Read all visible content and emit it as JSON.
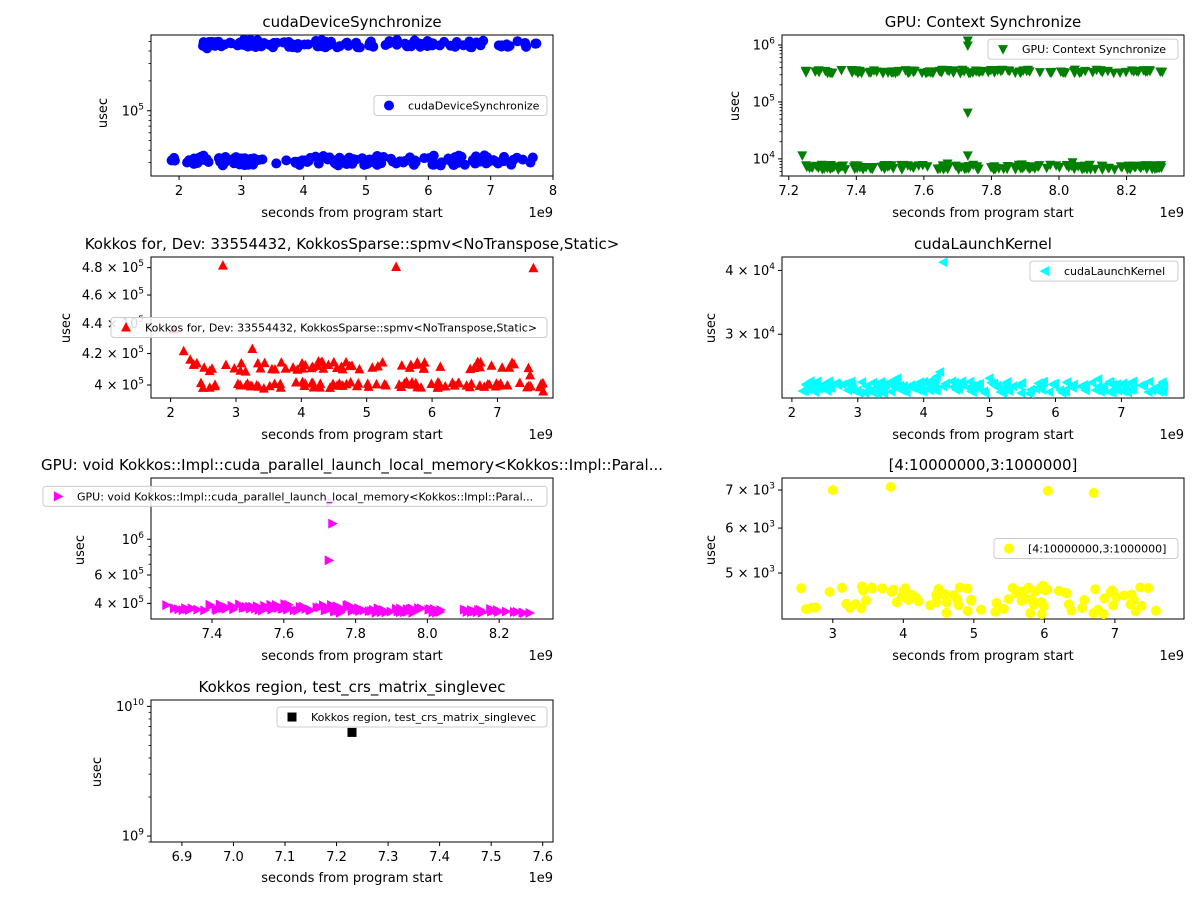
{
  "chart_data": [
    {
      "type": "scatter",
      "title": "cudaDeviceSynchronize",
      "xlabel": "seconds from program start",
      "ylabel": "usec",
      "x_offset_label": "1e9",
      "xlim": [
        1.55,
        8.0
      ],
      "ylim": [
        22000,
        580000
      ],
      "yscale": "log",
      "x_ticks": [
        2,
        3,
        4,
        5,
        6,
        7,
        8
      ],
      "x_tick_labels": [
        "2",
        "3",
        "4",
        "5",
        "6",
        "7",
        "8"
      ],
      "y_ticks": [
        100000
      ],
      "y_tick_labels": [
        "10^5"
      ],
      "legend_position": "center-right",
      "series": [
        {
          "name": "cudaDeviceSynchronize",
          "marker": "circle",
          "color": "#0000ff",
          "clusters": [
            {
              "x_start": 2.3,
              "x_end": 4.95,
              "y": 475000,
              "y_jitter": 0.04,
              "count": 60,
              "seed": 11
            },
            {
              "x_start": 5.05,
              "x_end": 6.9,
              "y": 475000,
              "y_jitter": 0.04,
              "count": 40,
              "seed": 12
            },
            {
              "x_start": 7.1,
              "x_end": 7.75,
              "y": 470000,
              "y_jitter": 0.04,
              "count": 12,
              "seed": 13
            },
            {
              "x_start": 1.85,
              "x_end": 7.75,
              "y": 31500,
              "y_jitter": 0.05,
              "count": 150,
              "seed": 14
            }
          ],
          "points": [
            {
              "x": 2.45,
              "y": 425000
            },
            {
              "x": 3.9,
              "y": 432000
            },
            {
              "x": 6.9,
              "y": 35500
            },
            {
              "x": 1.92,
              "y": 33500
            }
          ]
        }
      ]
    },
    {
      "type": "scatter",
      "title": "GPU: Context Synchronize",
      "xlabel": "seconds from program start",
      "ylabel": "usec",
      "x_offset_label": "1e9",
      "xlim": [
        7.18,
        8.37
      ],
      "ylim": [
        5000,
        1500000
      ],
      "yscale": "log",
      "x_ticks": [
        7.2,
        7.4,
        7.6,
        7.8,
        8.0,
        8.2
      ],
      "x_tick_labels": [
        "7.2",
        "7.4",
        "7.6",
        "7.8",
        "8.0",
        "8.2"
      ],
      "y_ticks": [
        10000,
        100000,
        1000000
      ],
      "y_tick_labels": [
        "10^4",
        "10^5",
        "10^6"
      ],
      "legend_position": "upper-right",
      "series": [
        {
          "name": "GPU: Context Synchronize",
          "marker": "triangle-down",
          "color": "#008000",
          "clusters": [
            {
              "x_start": 7.25,
              "x_end": 8.31,
              "y": 345000,
              "y_jitter": 0.03,
              "count": 120,
              "seed": 21
            },
            {
              "x_start": 7.25,
              "x_end": 8.31,
              "y": 7200,
              "y_jitter": 0.04,
              "count": 160,
              "seed": 22
            }
          ],
          "points": [
            {
              "x": 7.24,
              "y": 11500
            },
            {
              "x": 7.73,
              "y": 1200000
            },
            {
              "x": 7.73,
              "y": 980000
            },
            {
              "x": 7.73,
              "y": 65000
            },
            {
              "x": 7.73,
              "y": 11500
            },
            {
              "x": 7.67,
              "y": 8300
            },
            {
              "x": 7.89,
              "y": 8000
            },
            {
              "x": 8.04,
              "y": 8700
            }
          ]
        }
      ]
    },
    {
      "type": "scatter",
      "title": "Kokkos for, Dev: 33554432, KokkosSparse::spmv<NoTranspose,Static>",
      "xlabel": "seconds from program start",
      "ylabel": "usec",
      "x_offset_label": "1e9",
      "xlim": [
        1.7,
        7.85
      ],
      "ylim": [
        392000,
        488000
      ],
      "yscale": "log",
      "x_ticks": [
        2,
        3,
        4,
        5,
        6,
        7
      ],
      "x_tick_labels": [
        "2",
        "3",
        "4",
        "5",
        "6",
        "7"
      ],
      "y_ticks": [
        400000,
        420000,
        440000,
        460000,
        480000
      ],
      "y_tick_labels": [
        "4×10^5",
        "4.2×10^5",
        "4.4×10^5",
        "4.6×10^5",
        "4.8×10^5"
      ],
      "legend_position": "center-right",
      "series": [
        {
          "name": "Kokkos for, Dev: 33554432, KokkosSparse::spmv<NoTranspose,Static>",
          "marker": "triangle-up",
          "color": "#ff0000",
          "clusters": [
            {
              "x_start": 2.3,
              "x_end": 3.5,
              "y": 411000,
              "y_jitter": 0.003,
              "count": 14,
              "seed": 31
            },
            {
              "x_start": 2.3,
              "x_end": 3.5,
              "y": 399500,
              "y_jitter": 0.002,
              "count": 14,
              "seed": 32
            },
            {
              "x_start": 3.5,
              "x_end": 7.7,
              "y": 412000,
              "y_jitter": 0.003,
              "count": 50,
              "seed": 33
            },
            {
              "x_start": 3.5,
              "x_end": 7.7,
              "y": 400000,
              "y_jitter": 0.002,
              "count": 70,
              "seed": 34
            }
          ],
          "points": [
            {
              "x": 2.05,
              "y": 436000
            },
            {
              "x": 2.8,
              "y": 481500
            },
            {
              "x": 5.45,
              "y": 480500
            },
            {
              "x": 7.55,
              "y": 479500
            },
            {
              "x": 2.2,
              "y": 421500
            },
            {
              "x": 3.25,
              "y": 423000
            },
            {
              "x": 2.3,
              "y": 416000
            },
            {
              "x": 7.5,
              "y": 406000
            },
            {
              "x": 7.7,
              "y": 396000
            }
          ]
        }
      ]
    },
    {
      "type": "scatter",
      "title": "cudaLaunchKernel",
      "xlabel": "seconds from program start",
      "ylabel": "usec",
      "x_offset_label": "1e9",
      "xlim": [
        1.85,
        7.95
      ],
      "ylim": [
        22500,
        42500
      ],
      "yscale": "log",
      "x_ticks": [
        2,
        3,
        4,
        5,
        6,
        7
      ],
      "x_tick_labels": [
        "2",
        "3",
        "4",
        "5",
        "6",
        "7"
      ],
      "y_ticks": [
        30000,
        40000
      ],
      "y_tick_labels": [
        "3×10^4",
        "4×10^4"
      ],
      "legend_position": "upper-right",
      "series": [
        {
          "name": "cudaLaunchKernel",
          "marker": "triangle-left",
          "color": "#00ffff",
          "clusters": [
            {
              "x_start": 2.1,
              "x_end": 7.7,
              "y": 23600,
              "y_jitter": 0.012,
              "count": 200,
              "seed": 41
            }
          ],
          "points": [
            {
              "x": 4.3,
              "y": 41500
            },
            {
              "x": 4.25,
              "y": 25300
            },
            {
              "x": 4.2,
              "y": 24800
            },
            {
              "x": 3.6,
              "y": 24600
            },
            {
              "x": 5.0,
              "y": 24600
            },
            {
              "x": 6.65,
              "y": 24500
            },
            {
              "x": 4.1,
              "y": 24300
            }
          ]
        }
      ]
    },
    {
      "type": "scatter",
      "title": "GPU: void Kokkos::Impl::cuda_parallel_launch_local_memory<Kokkos::Impl::Paral...",
      "xlabel": "seconds from program start",
      "ylabel": "usec",
      "x_offset_label": "1e9",
      "xlim": [
        7.23,
        8.35
      ],
      "ylim": [
        320000,
        2400000
      ],
      "yscale": "log",
      "x_ticks": [
        7.4,
        7.6,
        7.8,
        8.0,
        8.2
      ],
      "x_tick_labels": [
        "7.4",
        "7.6",
        "7.8",
        "8.0",
        "8.2"
      ],
      "y_ticks": [
        400000,
        600000,
        1000000
      ],
      "y_tick_labels": [
        "4×10^5",
        "6×10^5",
        "10^6"
      ],
      "legend_position": "upper-right",
      "series": [
        {
          "name": "GPU: void Kokkos::Impl::cuda_parallel_launch_local_memory<Kokkos::Impl::Paral...",
          "marker": "triangle-right",
          "color": "#ff00ff",
          "clusters": [
            {
              "x_start": 7.26,
              "x_end": 7.78,
              "y": 378000,
              "y_jitter": 0.02,
              "count": 70,
              "seed": 51
            },
            {
              "x_start": 7.7,
              "x_end": 8.05,
              "y": 362000,
              "y_jitter": 0.015,
              "count": 50,
              "seed": 52
            },
            {
              "x_start": 8.1,
              "x_end": 8.3,
              "y": 360000,
              "y_jitter": 0.015,
              "count": 22,
              "seed": 53
            }
          ],
          "points": [
            {
              "x": 7.73,
              "y": 1700000
            },
            {
              "x": 7.735,
              "y": 1250000
            },
            {
              "x": 7.725,
              "y": 740000
            }
          ]
        }
      ]
    },
    {
      "type": "scatter",
      "title": "[4:10000000,3:1000000]",
      "xlabel": "seconds from program start",
      "ylabel": "usec",
      "x_offset_label": "1e9",
      "xlim": [
        2.28,
        7.98
      ],
      "ylim": [
        4150,
        7350
      ],
      "yscale": "log",
      "x_ticks": [
        3,
        4,
        5,
        6,
        7
      ],
      "x_tick_labels": [
        "3",
        "4",
        "5",
        "6",
        "7"
      ],
      "y_ticks": [
        5000,
        6000,
        7000
      ],
      "y_tick_labels": [
        "5×10^3",
        "6×10^3",
        "7×10^3"
      ],
      "legend_position": "center-right",
      "series": [
        {
          "name": "[4:10000000,3:1000000]",
          "marker": "circle",
          "color": "#ffff00",
          "clusters": [
            {
              "x_start": 2.5,
              "x_end": 7.7,
              "y": 4480,
              "y_jitter": 0.025,
              "count": 90,
              "seed": 61
            }
          ],
          "points": [
            {
              "x": 3.0,
              "y": 7000
            },
            {
              "x": 3.82,
              "y": 7090
            },
            {
              "x": 6.05,
              "y": 6980
            },
            {
              "x": 6.7,
              "y": 6920
            },
            {
              "x": 5.8,
              "y": 4250
            },
            {
              "x": 2.55,
              "y": 4700
            },
            {
              "x": 5.98,
              "y": 4750
            }
          ]
        }
      ]
    },
    {
      "type": "scatter",
      "title": "Kokkos region, test_crs_matrix_singlevec",
      "xlabel": "seconds from program start",
      "ylabel": "usec",
      "x_offset_label": "1e9",
      "xlim": [
        6.84,
        7.62
      ],
      "ylim": [
        900000000,
        11200000000
      ],
      "yscale": "log",
      "x_ticks": [
        6.9,
        7.0,
        7.1,
        7.2,
        7.3,
        7.4,
        7.5,
        7.6
      ],
      "x_tick_labels": [
        "6.9",
        "7.0",
        "7.1",
        "7.2",
        "7.3",
        "7.4",
        "7.5",
        "7.6"
      ],
      "y_ticks": [
        1000000000,
        10000000000
      ],
      "y_tick_labels": [
        "10^9",
        "10^10"
      ],
      "legend_position": "upper-right",
      "series": [
        {
          "name": "Kokkos region, test_crs_matrix_singlevec",
          "marker": "square",
          "color": "#000000",
          "clusters": [],
          "points": [
            {
              "x": 7.23,
              "y": 6300000000
            }
          ]
        }
      ]
    }
  ]
}
